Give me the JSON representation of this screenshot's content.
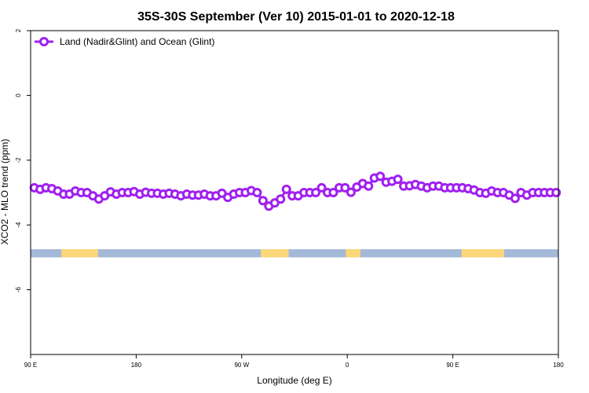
{
  "chart_data": {
    "type": "line",
    "title": "35S-30S September (Ver 10)   2015-01-01 to 2020-12-18",
    "xlabel": "Longitude (deg E)",
    "ylabel": "XCO2 - MLO trend (ppm)",
    "xlim": [
      90,
      450
    ],
    "ylim": [
      -8,
      2
    ],
    "x_ticks": [
      {
        "value": 90,
        "label": "90 E"
      },
      {
        "value": 162,
        "label": "180"
      },
      {
        "value": 234,
        "label": "90 W"
      },
      {
        "value": 306,
        "label": "0"
      },
      {
        "value": 378,
        "label": "90 E"
      },
      {
        "value": 450,
        "label": "180"
      }
    ],
    "y_ticks": [
      {
        "value": 2,
        "label": "2"
      },
      {
        "value": 0,
        "label": "0"
      },
      {
        "value": -2,
        "label": "-2"
      },
      {
        "value": -4,
        "label": "-4"
      },
      {
        "value": -6,
        "label": "-6"
      }
    ],
    "grid": false,
    "legend_position": "top-left",
    "series": [
      {
        "name": "Land (Nadir&Glint) and Ocean (Glint)",
        "color": "#a020f0",
        "marker": "open-circle",
        "x": [
          92.5,
          96.5,
          100.5,
          104.5,
          108.5,
          112.5,
          116.5,
          120.5,
          124.5,
          128.5,
          132.5,
          136.5,
          140.5,
          144.5,
          148.5,
          152.5,
          156.5,
          160.5,
          164.5,
          168.5,
          172.5,
          176.5,
          180.5,
          184.5,
          188.5,
          192.5,
          196.5,
          200.5,
          204.5,
          208.5,
          212.5,
          216.5,
          220.5,
          224.5,
          228.5,
          232.5,
          236.5,
          240.5,
          244.5,
          248.5,
          252.5,
          256.5,
          260.5,
          264.5,
          268.5,
          272.5,
          276.5,
          280.5,
          284.5,
          288.5,
          292.5,
          296.5,
          300.5,
          304.5,
          308.5,
          312.5,
          316.5,
          320.5,
          324.5,
          328.5,
          332.5,
          336.5,
          340.5,
          344.5,
          348.5,
          352.5,
          356.5,
          360.5,
          364.5,
          368.5,
          372.5,
          376.5,
          380.5,
          384.5,
          388.5,
          392.5,
          396.5,
          400.5,
          404.5,
          408.5,
          412.5,
          416.5,
          420.5,
          424.5,
          428.5,
          432.5,
          436.5,
          440.5,
          444.5,
          448.5
        ],
        "y": [
          -2.85,
          -2.9,
          -2.85,
          -2.88,
          -2.95,
          -3.05,
          -3.05,
          -2.95,
          -3.0,
          -3.0,
          -3.1,
          -3.2,
          -3.1,
          -2.98,
          -3.05,
          -3.0,
          -3.0,
          -2.97,
          -3.05,
          -2.99,
          -3.02,
          -3.02,
          -3.05,
          -3.02,
          -3.05,
          -3.1,
          -3.05,
          -3.08,
          -3.08,
          -3.05,
          -3.1,
          -3.1,
          -3.02,
          -3.15,
          -3.05,
          -3.0,
          -3.0,
          -2.94,
          -3.0,
          -3.25,
          -3.42,
          -3.32,
          -3.2,
          -2.9,
          -3.1,
          -3.1,
          -3.0,
          -3.0,
          -3.0,
          -2.85,
          -3.0,
          -3.0,
          -2.85,
          -2.85,
          -2.99,
          -2.83,
          -2.72,
          -2.8,
          -2.55,
          -2.5,
          -2.68,
          -2.65,
          -2.59,
          -2.8,
          -2.79,
          -2.75,
          -2.8,
          -2.85,
          -2.8,
          -2.8,
          -2.85,
          -2.85,
          -2.85,
          -2.85,
          -2.88,
          -2.92,
          -3.0,
          -3.02,
          -2.95,
          -3.0,
          -3.0,
          -3.08,
          -3.18,
          -3.0,
          -3.08,
          -3.0,
          -3.0,
          -3.0,
          -3.0,
          -3.0
        ]
      }
    ],
    "landmask_band": {
      "y_top": -4.75,
      "y_bottom": -5.0,
      "ocean_color": "#a4b8d8",
      "land_color": "#fcd77a",
      "land_ranges": [
        [
          111,
          136
        ],
        [
          247,
          266
        ],
        [
          305,
          315
        ],
        [
          384,
          413
        ]
      ]
    }
  }
}
